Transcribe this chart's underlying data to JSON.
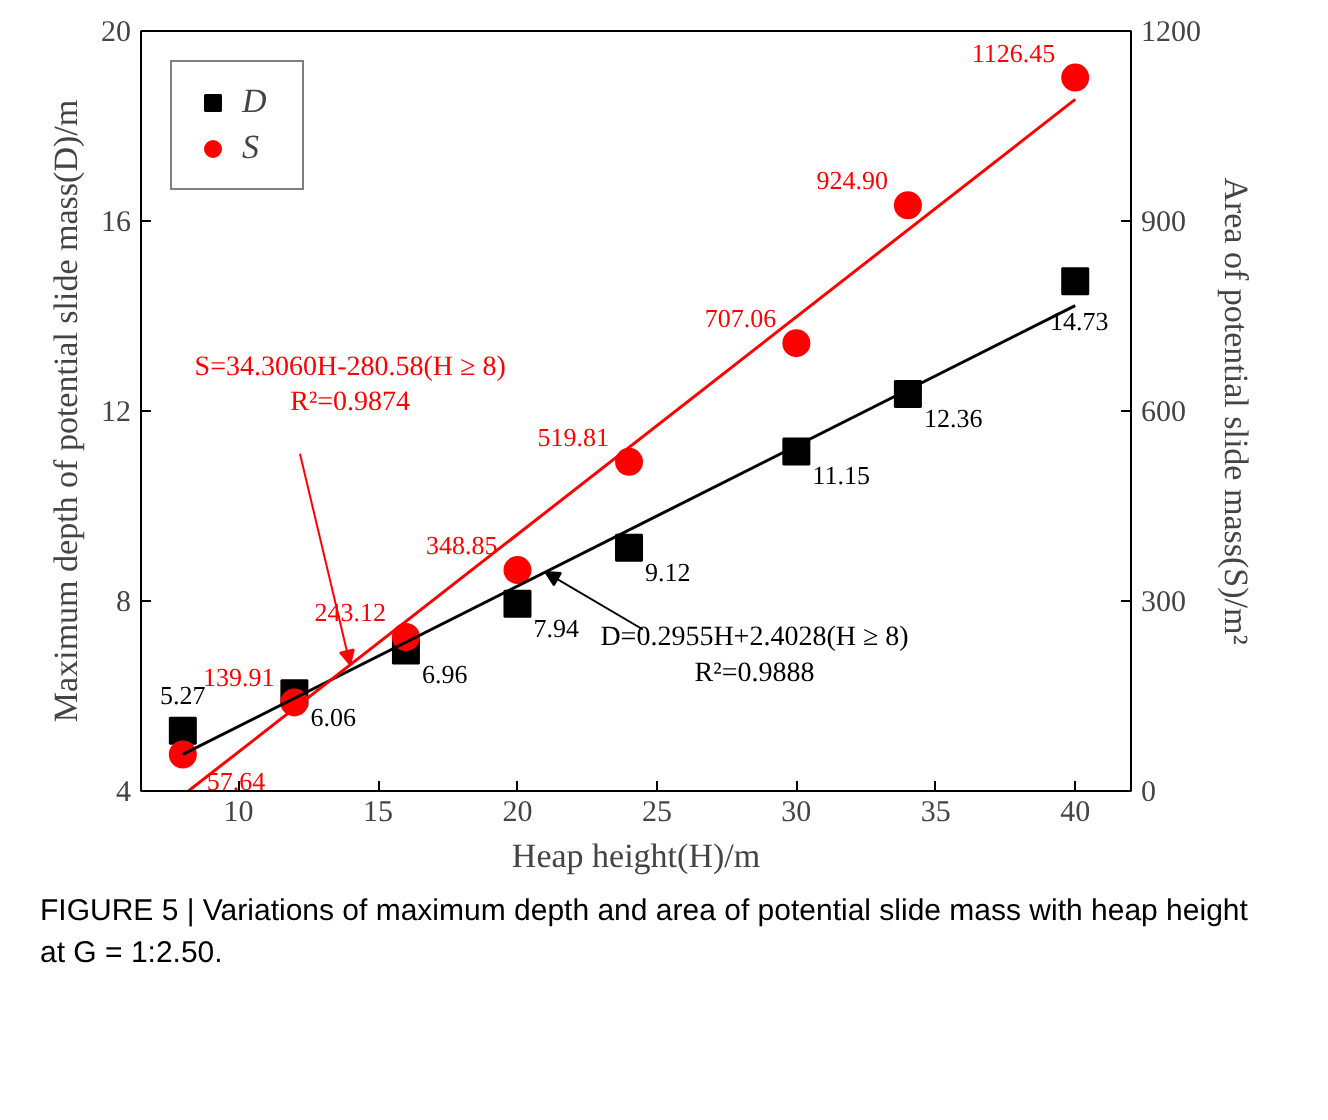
{
  "chart_data": {
    "type": "scatter",
    "xlabel": "Heap height(H)/m",
    "ylabel": "Maximum depth of potential slide mass(D)/m",
    "y2label": "Area of potential slide mass(S)/m²",
    "xlim": [
      6.5,
      42
    ],
    "xticks": [
      10,
      15,
      20,
      25,
      30,
      35,
      40
    ],
    "ylim": [
      4,
      20
    ],
    "yticks": [
      4,
      8,
      12,
      16,
      20
    ],
    "y2lim": [
      0,
      1200
    ],
    "y2ticks": [
      0,
      300,
      600,
      900,
      1200
    ],
    "grid": false,
    "legend": "top left",
    "series": [
      {
        "name": "D",
        "marker": "square",
        "color": "#000000",
        "x": [
          8,
          12,
          16,
          20,
          24,
          30,
          34,
          40
        ],
        "values": [
          5.27,
          6.06,
          6.96,
          7.94,
          9.12,
          11.15,
          12.36,
          14.73
        ],
        "value_labels": [
          "5.27",
          "6.06",
          "6.96",
          "7.94",
          "9.12",
          "11.15",
          "12.36",
          "14.73"
        ]
      },
      {
        "name": "S",
        "marker": "circle",
        "axis": "y2",
        "color": "#ff0000",
        "x": [
          8,
          12,
          16,
          20,
          24,
          30,
          34,
          40
        ],
        "values": [
          57.64,
          139.91,
          243.12,
          348.85,
          519.81,
          707.06,
          924.9,
          1126.45
        ],
        "value_labels": [
          "57.64",
          "139.91",
          "243.12",
          "348.85",
          "519.81",
          "707.06",
          "924.90",
          "1126.45"
        ]
      },
      {
        "type": "line",
        "color": "#000000",
        "x": [
          8,
          40
        ],
        "values": [
          4.77,
          14.22
        ]
      },
      {
        "type": "line",
        "axis": "y2",
        "color": "#ff0000",
        "x": [
          8.2,
          40
        ],
        "values": [
          0,
          1092
        ]
      }
    ],
    "annotations": [
      {
        "text": "S=34.3060H-280.58(H ≥ 8)\nR²=0.9874",
        "x": 14,
        "y": 6.66
      },
      {
        "text": "D=0.2955H+2.4028(H ≥ 8)\nR²=0.9888",
        "x": 21,
        "y": 8.61
      },
      "FIGURE 5 | Variations of maximum depth and area of potential slide mass with heap height at G = 1:2.50."
    ]
  }
}
